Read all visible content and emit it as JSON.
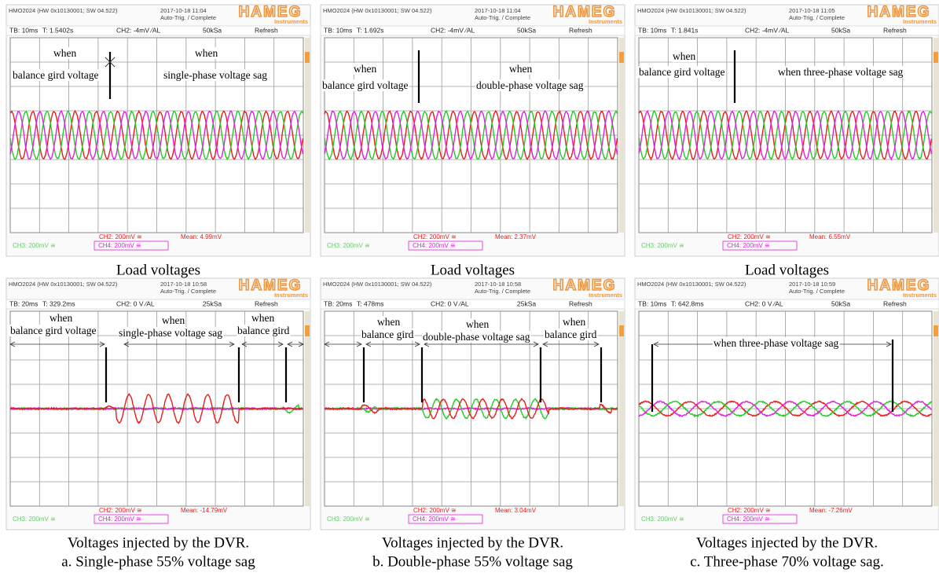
{
  "panels": [
    {
      "header": {
        "model": "HMO2024 (HW 0x10130001; SW 04.522)",
        "datetime": "2017-10-18 11:04",
        "status": "Auto-Trig. / Complete",
        "brand": "HAMEG",
        "brand_sub": "Instruments"
      },
      "statusbar": {
        "timebase": "TB: 10ms",
        "time": "T: 1.5402s",
        "trigger": "CH2: -4mV ⁄AL",
        "sample_rate": "50kSa",
        "mode": "Refresh"
      },
      "annotations": [
        "when",
        "balance gird voltage",
        "when",
        "single-phase voltage sag"
      ],
      "footer": {
        "ch2": "CH2: 200mV ≅",
        "mean": "Mean: 4.99mV",
        "ch3": "CH3: 200mV ≅",
        "ch4": "CH4: 200mV ≅"
      }
    },
    {
      "header": {
        "model": "HMO2024 (HW 0x10130001; SW 04.522)",
        "datetime": "2017-10-18 11:04",
        "status": "Auto-Trig. / Complete",
        "brand": "HAMEG",
        "brand_sub": "Instruments"
      },
      "statusbar": {
        "timebase": "TB: 10ms",
        "time": "T: 1.692s",
        "trigger": "CH2: -4mV ⁄AL",
        "sample_rate": "50kSa",
        "mode": "Refresh"
      },
      "annotations": [
        "when",
        "balance gird voltage",
        "when",
        "double-phase voltage sag"
      ],
      "footer": {
        "ch2": "CH2: 200mV ≅",
        "mean": "Mean: 2.37mV",
        "ch3": "CH3: 200mV ≅",
        "ch4": "CH4: 200mV ≅"
      }
    },
    {
      "header": {
        "model": "HMO2024 (HW 0x10130001; SW 04.522)",
        "datetime": "2017-10-18 11:05",
        "status": "Auto-Trig. / Complete",
        "brand": "HAMEG",
        "brand_sub": "Instruments"
      },
      "statusbar": {
        "timebase": "TB: 10ms",
        "time": "T: 1.841s",
        "trigger": "CH2: -4mV ⁄AL",
        "sample_rate": "50kSa",
        "mode": "Refresh"
      },
      "annotations": [
        "when",
        "balance gird voltage",
        "when three-phase voltage sag"
      ],
      "footer": {
        "ch2": "CH2: 200mV ≅",
        "mean": "Mean: 6.55mV",
        "ch3": "CH3: 200mV ≅",
        "ch4": "CH4: 200mV ≅"
      }
    },
    {
      "header": {
        "model": "HMO2024 (HW 0x10130001; SW 04.522)",
        "datetime": "2017-10-18 10:58",
        "status": "Auto-Trig. / Complete",
        "brand": "HAMEG",
        "brand_sub": "Instruments"
      },
      "statusbar": {
        "timebase": "TB: 20ms",
        "time": "T: 329.2ms",
        "trigger": "CH2: 0 V ⁄AL",
        "sample_rate": "25kSa",
        "mode": "Refresh"
      },
      "annotations": [
        "when",
        "balance gird voltage",
        "when",
        "single-phase voltage sag",
        "when",
        "balance gird"
      ],
      "footer": {
        "ch2": "CH2: 200mV ≅",
        "mean": "Mean: -14.79mV",
        "ch3": "CH3: 200mV ≅",
        "ch4": "CH4: 200mV ≅"
      }
    },
    {
      "header": {
        "model": "HMO2024 (HW 0x10130001; SW 04.522)",
        "datetime": "2017-10-18 10:58",
        "status": "Auto-Trig. / Complete",
        "brand": "HAMEG",
        "brand_sub": "Instruments"
      },
      "statusbar": {
        "timebase": "TB: 20ms",
        "time": "T: 478ms",
        "trigger": "CH2: 0 V ⁄AL",
        "sample_rate": "25kSa",
        "mode": "Refresh"
      },
      "annotations": [
        "when",
        "balance gird",
        "when",
        "double-phase voltage sag",
        "when",
        "balance gird"
      ],
      "footer": {
        "ch2": "CH2: 200mV ≅",
        "mean": "Mean: 3.04mV",
        "ch3": "CH3: 200mV ≅",
        "ch4": "CH4: 200mV ≅"
      }
    },
    {
      "header": {
        "model": "HMO2024 (HW 0x10130001; SW 04.522)",
        "datetime": "2017-10-18 10:59",
        "status": "Auto-Trig. / Complete",
        "brand": "HAMEG",
        "brand_sub": "Instruments"
      },
      "statusbar": {
        "timebase": "TB: 10ms",
        "time": "T: 642.8ms",
        "trigger": "CH2: 0 V ⁄AL",
        "sample_rate": "50kSa",
        "mode": "Refresh"
      },
      "annotations": [
        "when three-phase voltage sag"
      ],
      "footer": {
        "ch2": "CH2: 200mV ≅",
        "mean": "Mean: -7.26mV",
        "ch3": "CH3: 200mV ≅",
        "ch4": "CH4: 200mV ≅"
      }
    }
  ],
  "captions": [
    [
      "Load voltages"
    ],
    [
      "Load voltages"
    ],
    [
      "Load voltages"
    ],
    [
      "Voltages injected by the DVR.",
      "a. Single-phase 55% voltage sag"
    ],
    [
      "Voltages injected by the DVR.",
      "b. Double-phase 55% voltage sag"
    ],
    [
      "Voltages injected by the DVR.",
      "c. Three-phase 70% voltage sag."
    ]
  ]
}
